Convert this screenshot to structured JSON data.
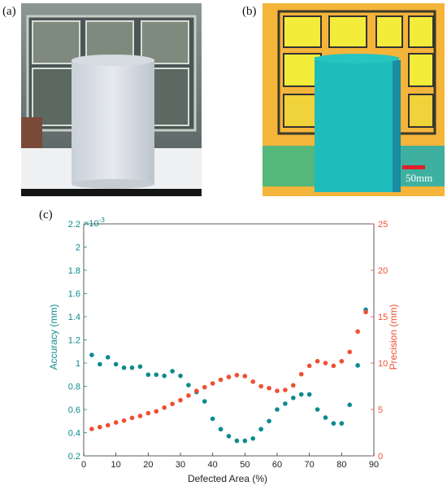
{
  "panels": {
    "a": "(a)",
    "b": "(b)",
    "c": "(c)"
  },
  "scalebar": {
    "label": "50mm",
    "color": "#e0202a"
  },
  "colors": {
    "accuracy": "#0e8a8e",
    "precision": "#f04e32",
    "axis_text": "#222222"
  },
  "chart_data": {
    "type": "scatter",
    "xlabel": "Defected Area (%)",
    "x_ticks": [
      "0",
      "10",
      "20",
      "30",
      "40",
      "50",
      "60",
      "70",
      "80",
      "90"
    ],
    "xlim": [
      0,
      90
    ],
    "y_left": {
      "label": "Accuracy (mm)",
      "multiplier": "×10",
      "exponent": "-3",
      "ylim": [
        0.2,
        2.2
      ],
      "ticks": [
        "0.2",
        "0.4",
        "0.6",
        "0.8",
        "1",
        "1.2",
        "1.4",
        "1.6",
        "1.8",
        "2",
        "2.2"
      ]
    },
    "y_right": {
      "label": "Precision (mm)",
      "ylim": [
        0,
        25
      ],
      "ticks": [
        "0",
        "5",
        "10",
        "15",
        "20",
        "25"
      ]
    },
    "series": [
      {
        "axis": "left",
        "color": "#0e8a8e",
        "x": [
          2.5,
          5,
          7.5,
          10,
          12.5,
          15,
          17.5,
          20,
          22.5,
          25,
          27.5,
          30,
          32.5,
          35,
          37.5,
          40,
          42.5,
          45,
          47.5,
          50,
          52.5,
          55,
          57.5,
          60,
          62.5,
          65,
          67.5,
          70,
          72.5,
          75,
          77.5,
          80,
          82.5,
          85,
          87.5
        ],
        "values": [
          1.07,
          0.99,
          1.05,
          0.99,
          0.96,
          0.96,
          0.97,
          0.9,
          0.9,
          0.89,
          0.93,
          0.89,
          0.81,
          0.75,
          0.67,
          0.52,
          0.43,
          0.37,
          0.33,
          0.33,
          0.35,
          0.43,
          0.5,
          0.6,
          0.65,
          0.7,
          0.73,
          0.73,
          0.6,
          0.53,
          0.48,
          0.48,
          0.64,
          0.98,
          1.46
        ]
      },
      {
        "axis": "right",
        "color": "#f04e32",
        "x": [
          2.5,
          5,
          7.5,
          10,
          12.5,
          15,
          17.5,
          20,
          22.5,
          25,
          27.5,
          30,
          32.5,
          35,
          37.5,
          40,
          42.5,
          45,
          47.5,
          50,
          52.5,
          55,
          57.5,
          60,
          62.5,
          65,
          67.5,
          70,
          72.5,
          75,
          77.5,
          80,
          82.5,
          85,
          87.5
        ],
        "values": [
          2.9,
          3.1,
          3.3,
          3.6,
          3.8,
          4.1,
          4.3,
          4.6,
          4.8,
          5.2,
          5.6,
          6.0,
          6.5,
          7.0,
          7.4,
          7.8,
          8.2,
          8.5,
          8.7,
          8.6,
          8.0,
          7.5,
          7.3,
          7.0,
          7.1,
          7.6,
          8.8,
          9.7,
          10.2,
          10.0,
          9.7,
          10.2,
          11.2,
          13.4,
          15.5
        ]
      }
    ]
  }
}
